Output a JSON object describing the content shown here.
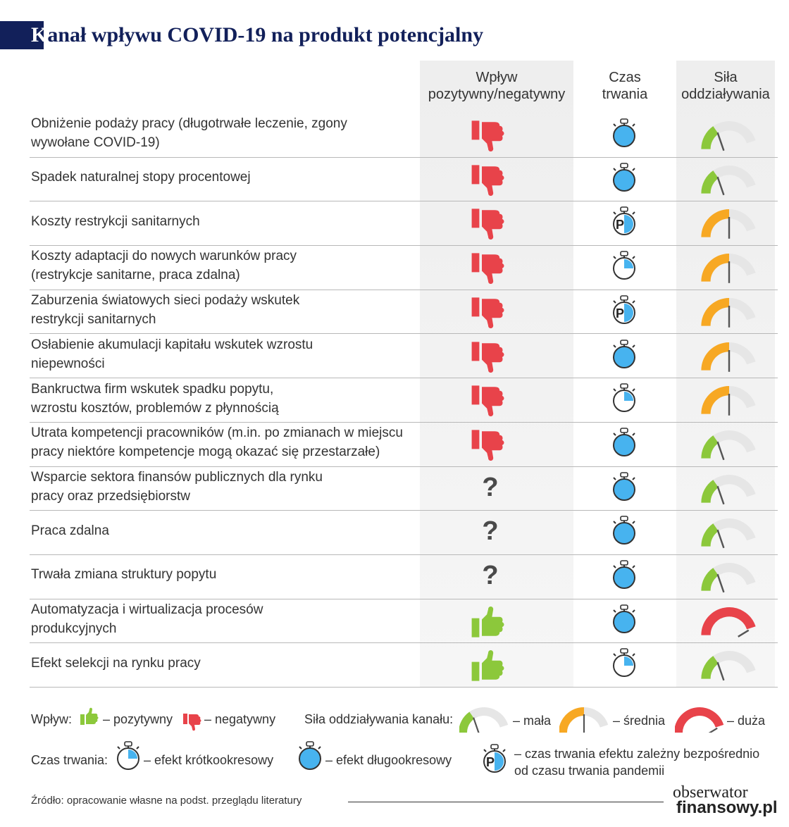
{
  "title": {
    "first_letter": "K",
    "rest": "anał wpływu COVID-19 na produkt potencjalny"
  },
  "columns": {
    "impact": [
      "Wpływ",
      "pozytywny/negatywny"
    ],
    "duration": [
      "Czas",
      "trwania"
    ],
    "strength": [
      "Siła",
      "oddziaływania"
    ]
  },
  "rows": [
    {
      "label": [
        "Obniżenie podaży pracy (długotrwałe leczenie, zgony",
        "wywołane COVID-19)"
      ],
      "impact": "negative",
      "duration": "long",
      "strength": "small"
    },
    {
      "label": [
        "Spadek naturalnej stopy procentowej"
      ],
      "impact": "negative",
      "duration": "long",
      "strength": "small"
    },
    {
      "label": [
        "Koszty restrykcji sanitarnych"
      ],
      "impact": "negative",
      "duration": "pandemic",
      "strength": "medium"
    },
    {
      "label": [
        "Koszty adaptacji do nowych warunków pracy",
        "(restrykcje sanitarne, praca zdalna)"
      ],
      "impact": "negative",
      "duration": "short",
      "strength": "medium"
    },
    {
      "label": [
        "Zaburzenia światowych sieci podaży wskutek",
        "restrykcji sanitarnych"
      ],
      "impact": "negative",
      "duration": "pandemic",
      "strength": "medium"
    },
    {
      "label": [
        "Osłabienie akumulacji kapitału wskutek wzrostu",
        "niepewności"
      ],
      "impact": "negative",
      "duration": "long",
      "strength": "medium"
    },
    {
      "label": [
        "Bankructwa firm wskutek spadku popytu,",
        "wzrostu kosztów, problemów z płynnością"
      ],
      "impact": "negative",
      "duration": "short",
      "strength": "medium"
    },
    {
      "label": [
        "Utrata kompetencji pracowników (m.in. po zmianach w miejscu",
        "pracy niektóre kompetencje mogą okazać się przestarzałe)"
      ],
      "impact": "negative",
      "duration": "long",
      "strength": "small"
    },
    {
      "label": [
        "Wsparcie sektora finansów publicznych dla rynku",
        "pracy oraz przedsiębiorstw"
      ],
      "impact": "unknown",
      "duration": "long",
      "strength": "small"
    },
    {
      "label": [
        "Praca zdalna"
      ],
      "impact": "unknown",
      "duration": "long",
      "strength": "small"
    },
    {
      "label": [
        "Trwała zmiana struktury popytu"
      ],
      "impact": "unknown",
      "duration": "long",
      "strength": "small"
    },
    {
      "label": [
        "Automatyzacja i wirtualizacja procesów",
        "produkcyjnych"
      ],
      "impact": "positive",
      "duration": "long",
      "strength": "large"
    },
    {
      "label": [
        "Efekt selekcji na rynku pracy"
      ],
      "impact": "positive",
      "duration": "short",
      "strength": "small"
    }
  ],
  "legend": {
    "impact_label": "Wpływ:",
    "positive": "– pozytywny",
    "negative": "– negatywny",
    "strength_label": "Siła oddziaływania kanału:",
    "small": "– mała",
    "medium": "– średnia",
    "large": "– duża",
    "duration_label": "Czas trwania:",
    "short": "– efekt krótkookresowy",
    "long": "– efekt długookresowy",
    "pandemic": [
      "– czas trwania efektu zależny bezpośrednio",
      "od czasu trwania pandemii"
    ]
  },
  "source": "Źródło: opracowanie własne na podst. przeglądu literatury",
  "logo": {
    "line1": "obserwator",
    "line2": "finansowy.pl"
  },
  "colors": {
    "title": "#12205a",
    "negative": "#e8434a",
    "positive": "#8cc83b",
    "duration_fill": "#47b3ef",
    "gauge_small": "#8cc83b",
    "gauge_medium": "#f7a823",
    "gauge_large": "#e8434a",
    "gauge_track": "#e6e6e6"
  },
  "icon_names": {
    "negative": "thumbs-down-icon",
    "positive": "thumbs-up-icon",
    "unknown": "question-mark-icon",
    "long": "stopwatch-full-icon",
    "short": "stopwatch-quarter-icon",
    "pandemic": "stopwatch-pandemic-icon"
  }
}
